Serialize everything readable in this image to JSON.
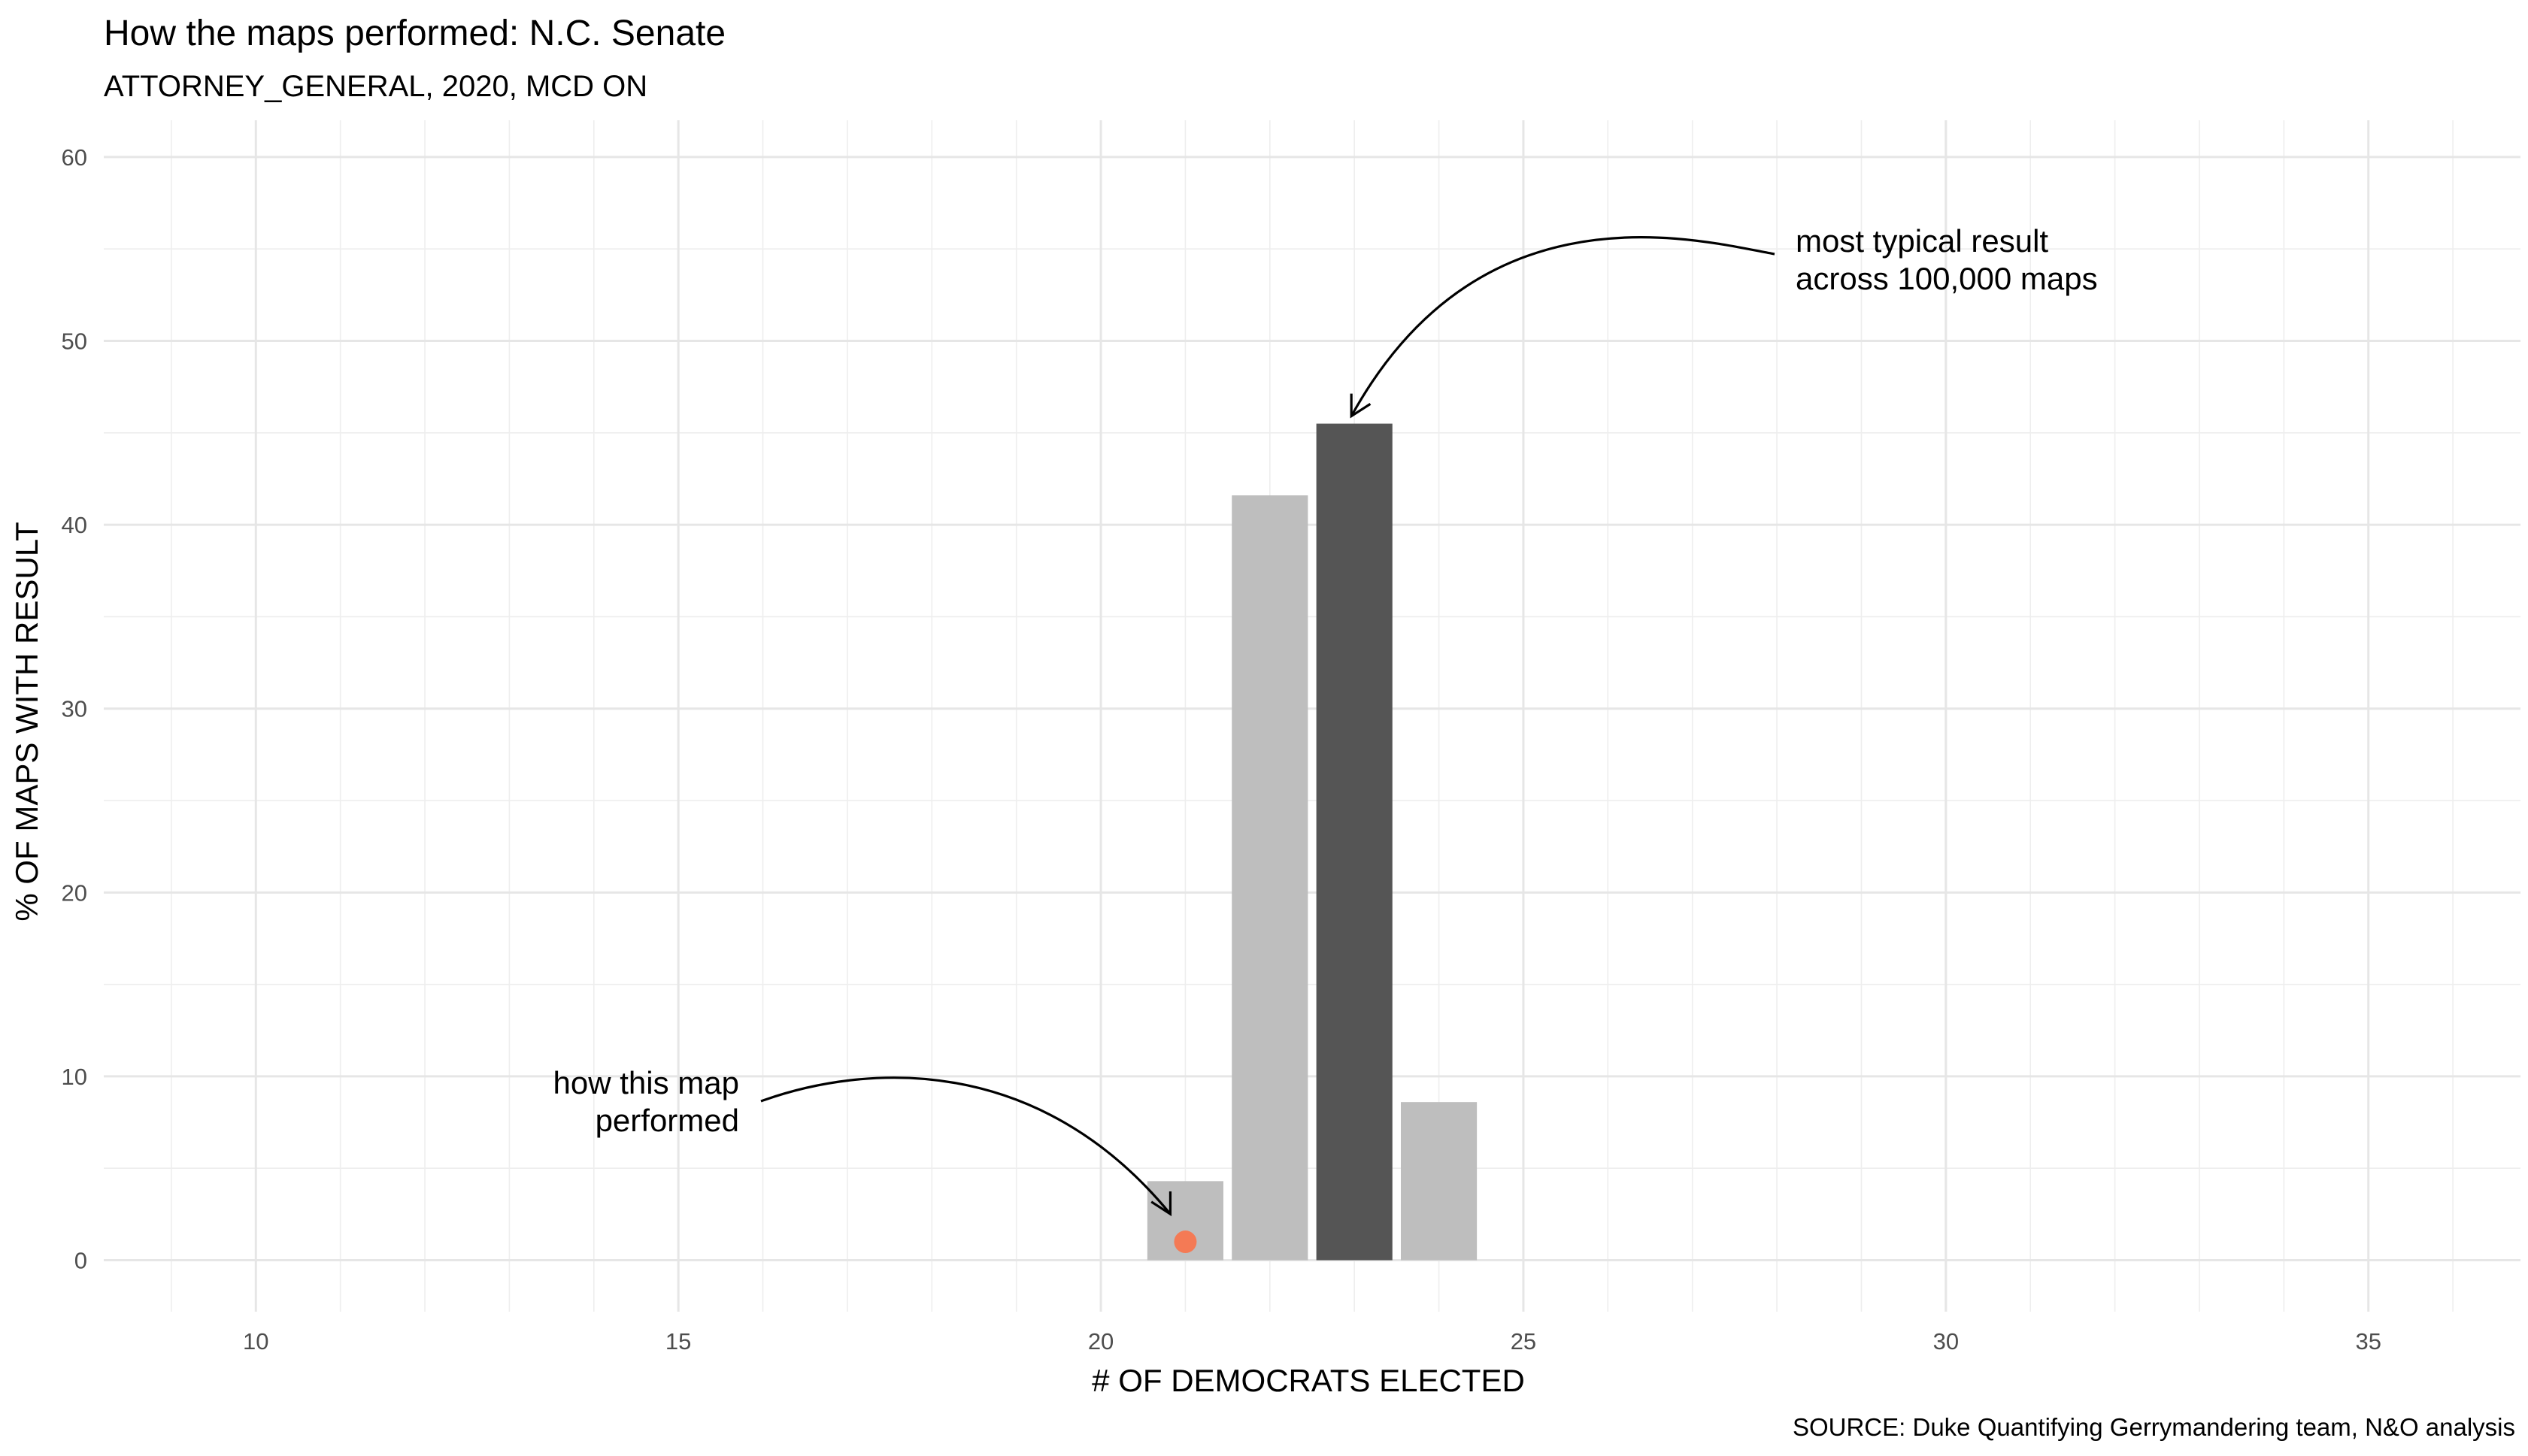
{
  "chart_data": {
    "type": "bar",
    "title": "How the maps performed: N.C. Senate",
    "subtitle": "ATTORNEY_GENERAL, 2020, MCD ON",
    "xlabel": "# OF DEMOCRATS ELECTED",
    "ylabel": "% OF MAPS WITH RESULT",
    "caption": "SOURCE: Duke Quantifying Gerrymandering team, N&O analysis",
    "xlim": [
      8.2,
      36.8
    ],
    "ylim": [
      -2.8,
      62
    ],
    "x_ticks": [
      10,
      15,
      20,
      25,
      30,
      35
    ],
    "y_ticks": [
      0,
      10,
      20,
      30,
      40,
      50,
      60
    ],
    "grid": true,
    "x": [
      21,
      22,
      23,
      24
    ],
    "values": [
      4.3,
      41.6,
      45.5,
      8.6
    ],
    "highlight_x": 23,
    "bar_color": "#bebebe",
    "highlight_color": "#555555",
    "point": {
      "x": 21,
      "y": 1,
      "color": "#f47a55"
    },
    "annotations": [
      {
        "text_lines": [
          "most typical result",
          "across 100,000 maps"
        ],
        "target_x": 23,
        "target_y": 45.5
      },
      {
        "text_lines": [
          "how this map",
          "performed"
        ],
        "target_x": 21,
        "target_y": 1
      }
    ]
  }
}
